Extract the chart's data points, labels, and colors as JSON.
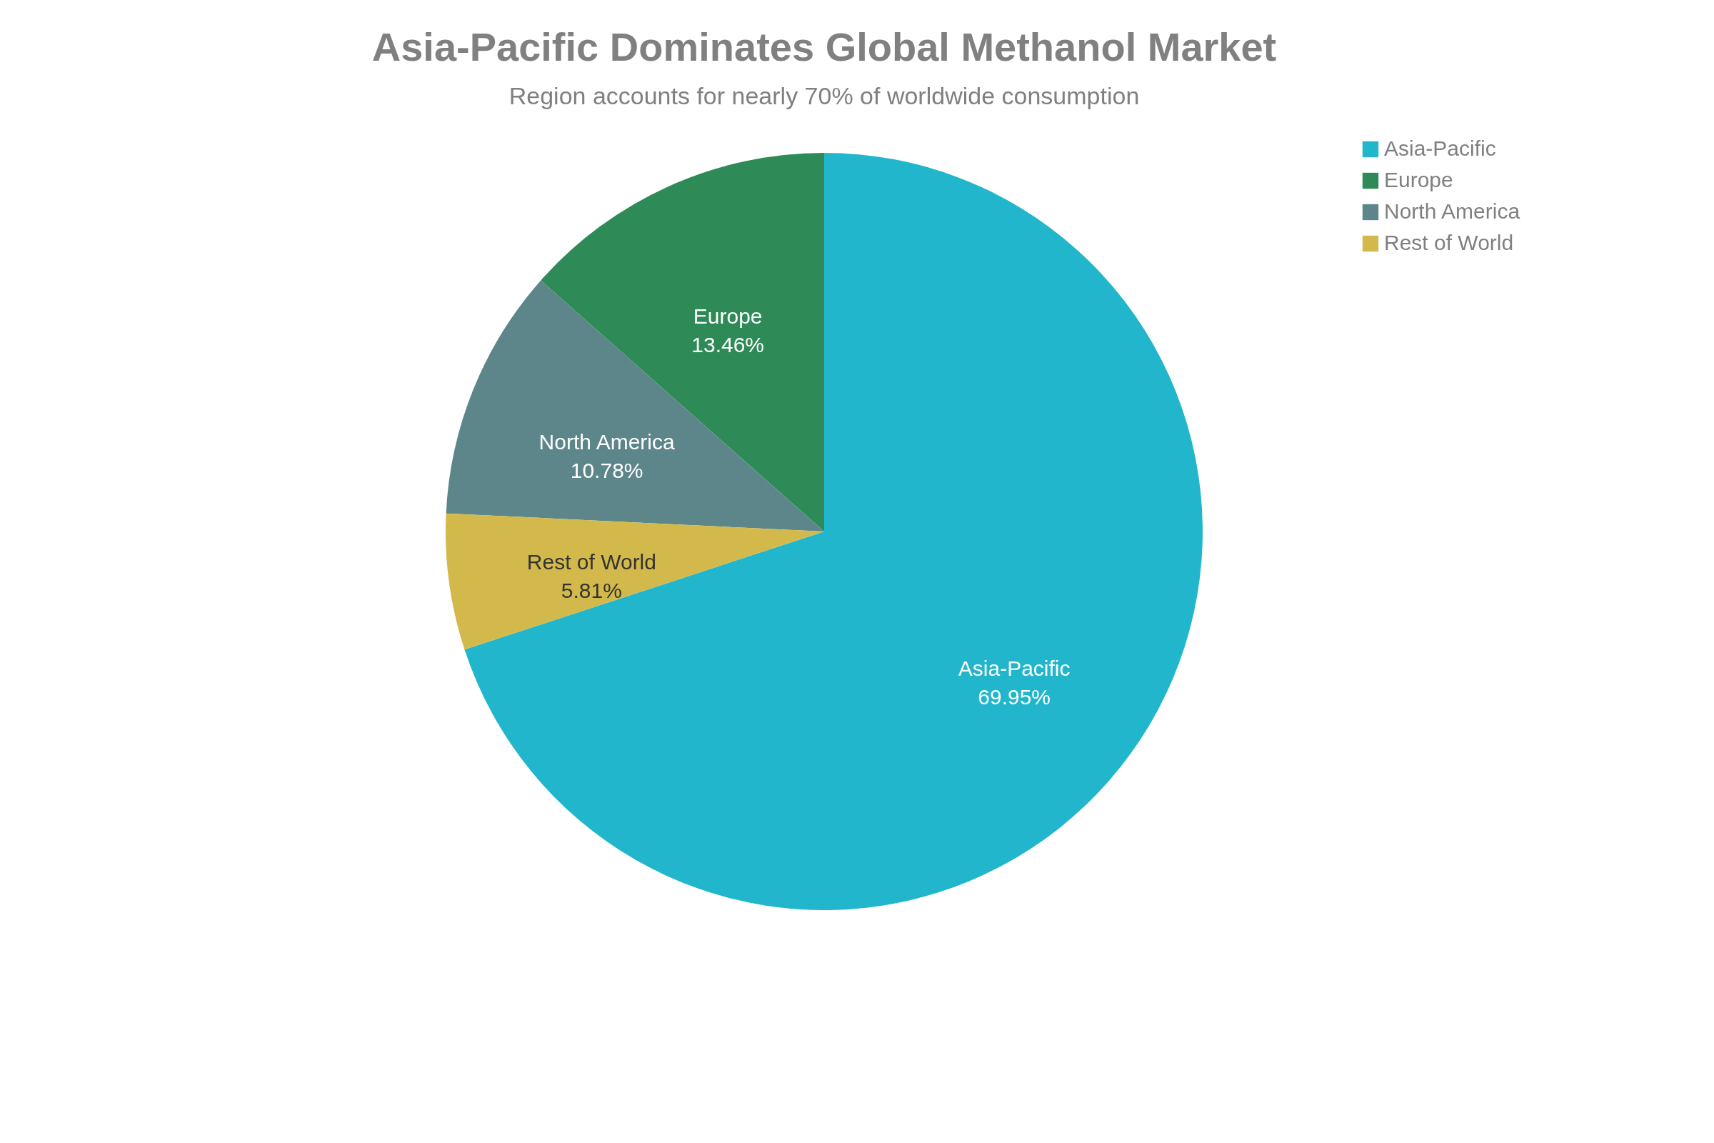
{
  "chart_data": {
    "type": "pie",
    "title": "Asia-Pacific Dominates Global Methanol Market",
    "subtitle": "Region accounts for nearly 70% of worldwide consumption",
    "categories": [
      "Asia-Pacific",
      "Europe",
      "North America",
      "Rest of World"
    ],
    "values": [
      69.95,
      13.46,
      10.78,
      5.81
    ],
    "value_labels": [
      "69.95%",
      "13.46%",
      "10.78%",
      "5.81%"
    ],
    "colors": [
      "#21b6cc",
      "#2e8a57",
      "#5d868a",
      "#d3b94b"
    ],
    "legend": "top right"
  }
}
